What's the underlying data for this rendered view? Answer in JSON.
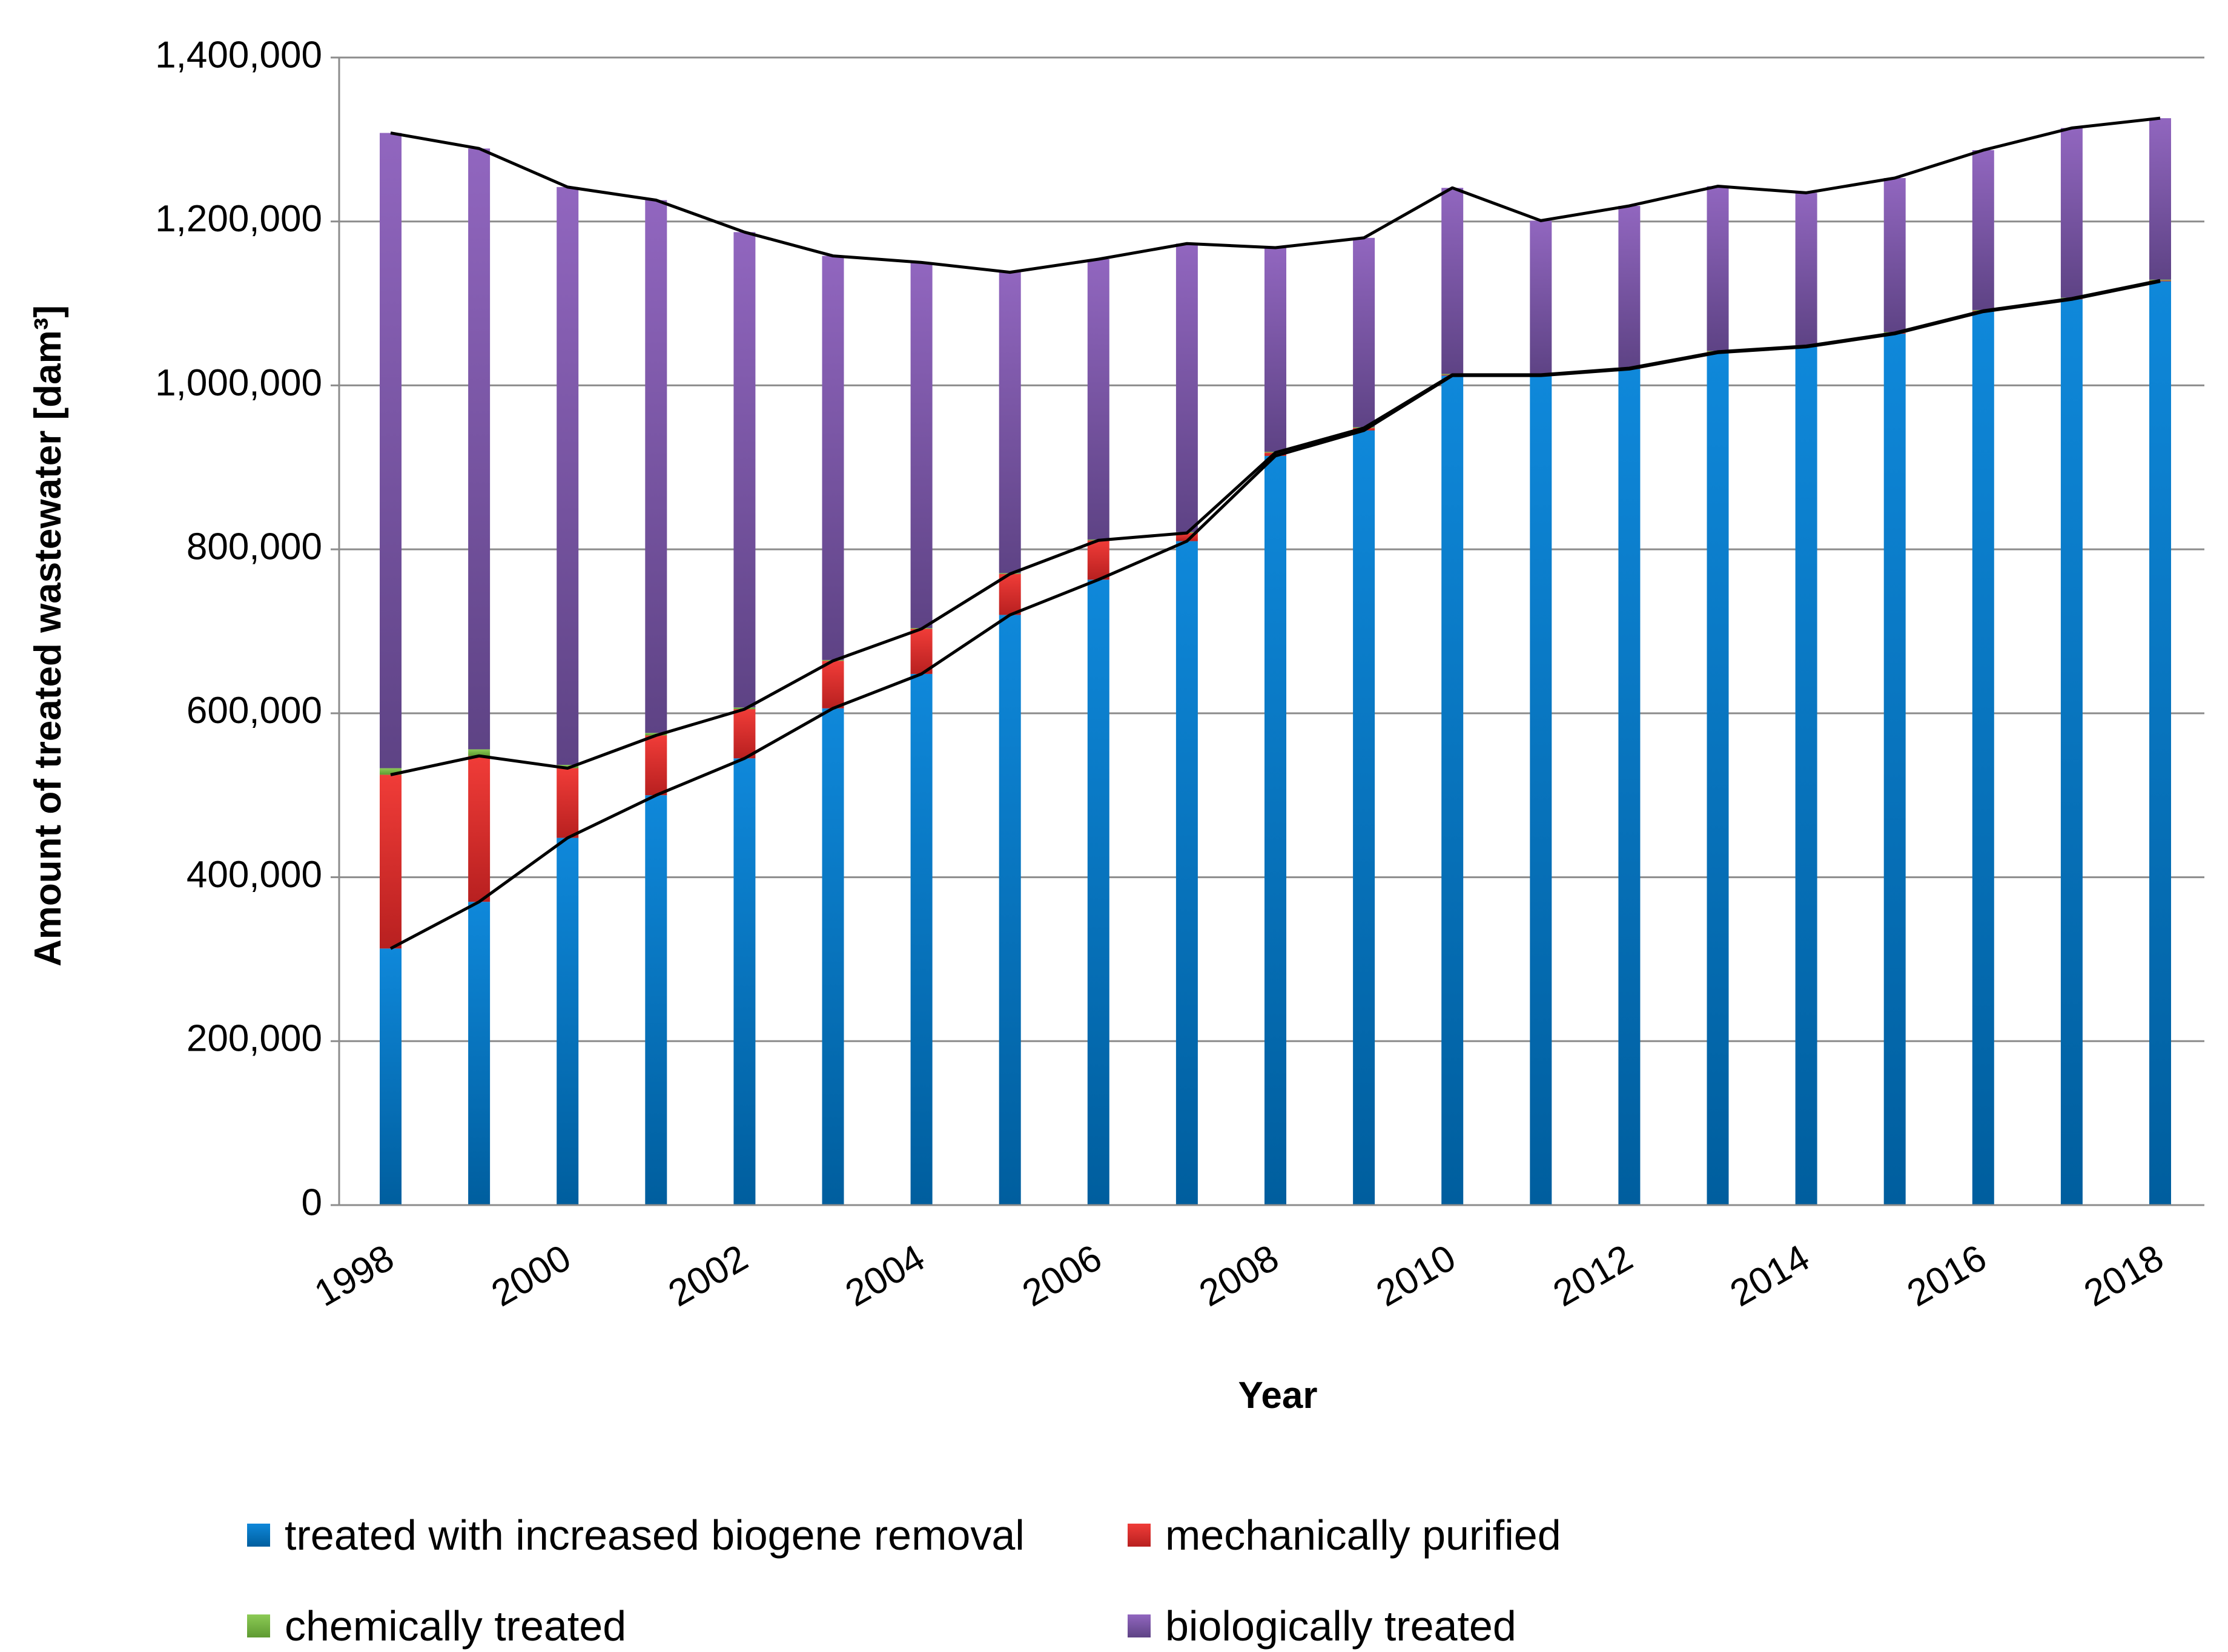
{
  "chart_data": {
    "type": "bar",
    "stacked": true,
    "title": "",
    "xlabel": "Year",
    "ylabel": "Amount of treated wastewater  [dam³]",
    "ylim": [
      0,
      1400000
    ],
    "yticks": [
      0,
      200000,
      400000,
      600000,
      800000,
      1000000,
      1200000,
      1400000
    ],
    "ytick_labels": [
      "0",
      "200,000",
      "400,000",
      "600,000",
      "800,000",
      "1,000,000",
      "1,200,000",
      "1,400,000"
    ],
    "categories": [
      "1998",
      "1999",
      "2000",
      "2001",
      "2002",
      "2003",
      "2004",
      "2005",
      "2006",
      "2007",
      "2008",
      "2009",
      "2010",
      "2011",
      "2012",
      "2013",
      "2014",
      "2015",
      "2016",
      "2017",
      "2018"
    ],
    "xtick_labels": [
      "1998",
      "2000",
      "2002",
      "2004",
      "2006",
      "2008",
      "2010",
      "2012",
      "2014",
      "2016",
      "2018"
    ],
    "grid": true,
    "legend_position": "bottom",
    "series": [
      {
        "name": "treated with increased biogene removal",
        "color": "#0070C0",
        "values": [
          313000,
          370000,
          448000,
          500000,
          545000,
          606000,
          648000,
          720000,
          763000,
          810000,
          914000,
          945000,
          1012000,
          1012000,
          1020000,
          1040000,
          1047000,
          1063000,
          1090000,
          1105000,
          1127000
        ]
      },
      {
        "name": "mechanically purified",
        "color": "#E8322E",
        "values": [
          212000,
          178000,
          85000,
          73000,
          60000,
          58000,
          55000,
          50000,
          48000,
          10000,
          4000,
          3000,
          1000,
          1000,
          1000,
          1000,
          1000,
          1000,
          1000,
          1000,
          1000
        ]
      },
      {
        "name": "chemically treated",
        "color": "#7AB648",
        "values": [
          8000,
          8000,
          4000,
          3000,
          2000,
          1000,
          1000,
          1000,
          1000,
          1000,
          1000,
          1000,
          1000,
          1000,
          1000,
          1000,
          1000,
          1000,
          1000,
          1000,
          1000
        ]
      },
      {
        "name": "biologically treated",
        "color": "#8064A2",
        "values": [
          775000,
          733000,
          705000,
          650000,
          580000,
          493000,
          446000,
          367000,
          342000,
          352000,
          249000,
          231000,
          227000,
          187000,
          197000,
          201000,
          186000,
          188000,
          195000,
          207000,
          197000
        ]
      }
    ],
    "legend": [
      {
        "label": "treated with increased biogene removal",
        "color": "#0070C0"
      },
      {
        "label": "mechanically purified",
        "color": "#E8322E"
      },
      {
        "label": "chemically treated",
        "color": "#7AB648"
      },
      {
        "label": "biologically treated",
        "color": "#8064A2"
      }
    ]
  }
}
